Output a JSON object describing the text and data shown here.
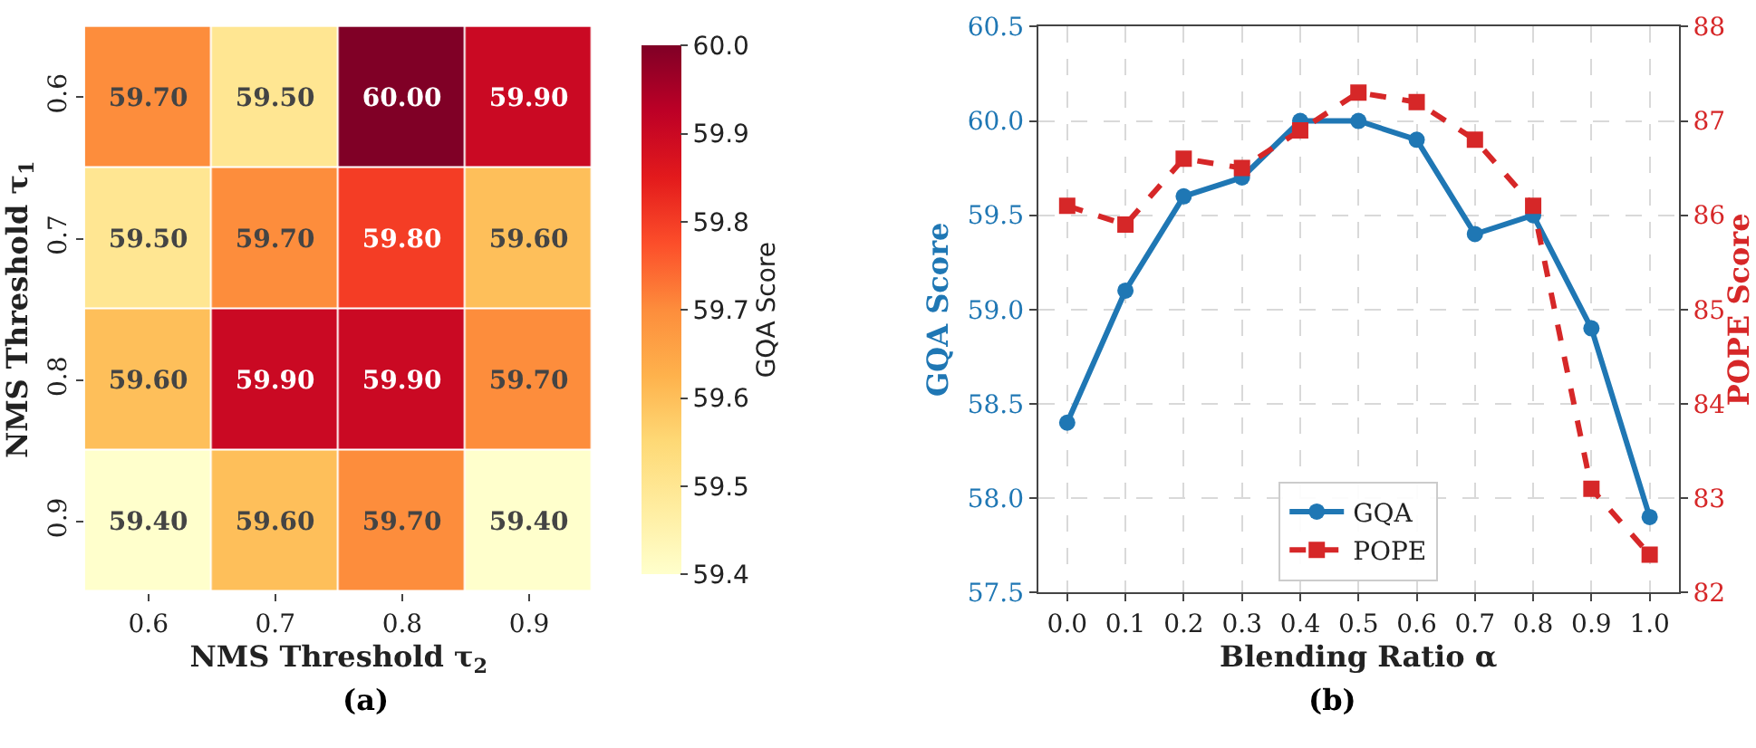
{
  "chart_data": [
    {
      "type": "heatmap",
      "xlabel": "NMS Threshold τ$_{2}$",
      "ylabel": "NMS Threshold τ$_{1}$",
      "clabel": "GQA Score",
      "annotations": [
        "(a)"
      ],
      "categories": [
        "0.6",
        "0.7",
        "0.8",
        "0.9"
      ],
      "y_categories": [
        "0.6",
        "0.7",
        "0.8",
        "0.9"
      ],
      "cells": [
        [
          59.7,
          59.5,
          60.0,
          59.9
        ],
        [
          59.5,
          59.7,
          59.8,
          59.6
        ],
        [
          59.6,
          59.9,
          59.9,
          59.7
        ],
        [
          59.4,
          59.6,
          59.7,
          59.4
        ]
      ],
      "cell_labels": [
        [
          "59.70",
          "59.50",
          "60.00",
          "59.90"
        ],
        [
          "59.50",
          "59.70",
          "59.80",
          "59.60"
        ],
        [
          "59.60",
          "59.90",
          "59.90",
          "59.70"
        ],
        [
          "59.40",
          "59.60",
          "59.70",
          "59.40"
        ]
      ],
      "clim": [
        59.4,
        60.0
      ],
      "cticks": [
        {
          "value": 59.4,
          "label": "59.4"
        },
        59.5,
        59.6,
        59.7,
        59.8,
        59.9,
        {
          "value": 60.0,
          "label": "60.0"
        }
      ]
    },
    {
      "type": "line",
      "xlabel": "Blending Ratio α",
      "ylabel": "GQA Score",
      "y2label": "POPE Score",
      "annotations": [
        "(b)"
      ],
      "x": [
        0.0,
        0.1,
        0.2,
        0.3,
        0.4,
        0.5,
        0.6,
        0.7,
        0.8,
        0.9,
        1.0
      ],
      "series": [
        {
          "name": "GQA",
          "color": "#1f77b4",
          "marker": "circle",
          "line_style": "solid",
          "values": [
            58.4,
            59.1,
            59.6,
            59.7,
            60.0,
            60.0,
            59.9,
            59.4,
            59.5,
            58.9,
            57.9
          ]
        },
        {
          "name": "POPE",
          "color": "#d62728",
          "marker": "square",
          "line_style": "dashed",
          "axis": "y2",
          "values": [
            86.1,
            85.9,
            86.6,
            86.5,
            86.9,
            87.3,
            87.2,
            86.8,
            86.1,
            83.1,
            82.4
          ]
        }
      ],
      "xlim": [
        -0.05,
        1.05
      ],
      "xticks": [
        {
          "value": 0.0,
          "label": "0.0"
        },
        0.1,
        0.2,
        0.3,
        0.4,
        0.5,
        0.6,
        0.7,
        0.8,
        0.9,
        {
          "value": 1.0,
          "label": "1.0"
        }
      ],
      "ylim": [
        57.5,
        60.5
      ],
      "yticks": [
        57.5,
        {
          "value": 58.0,
          "label": "58.0"
        },
        58.5,
        {
          "value": 59.0,
          "label": "59.0"
        },
        59.5,
        {
          "value": 60.0,
          "label": "60.0"
        },
        60.5
      ],
      "y2lim": [
        82,
        88
      ],
      "y2ticks": [
        82,
        83,
        84,
        85,
        86,
        87,
        88
      ],
      "grid": true,
      "legend": "bottom"
    }
  ]
}
